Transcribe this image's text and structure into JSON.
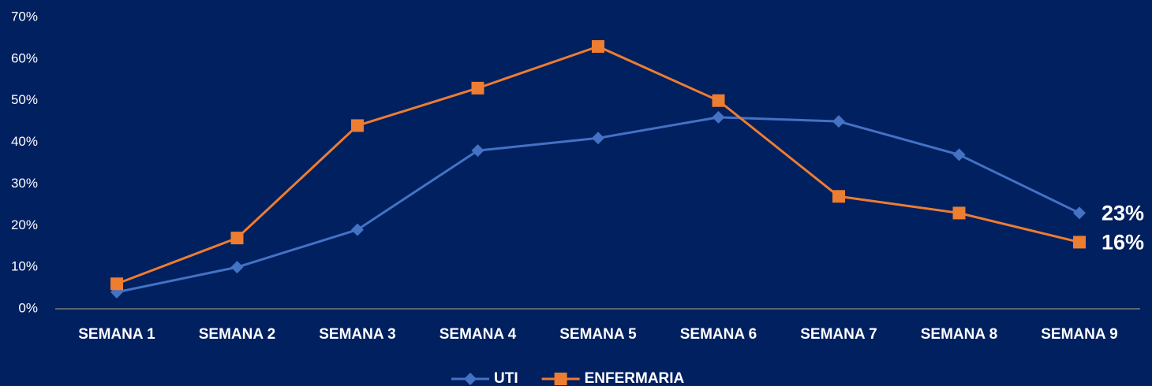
{
  "chart_data": {
    "type": "line",
    "categories": [
      "SEMANA 1",
      "SEMANA 2",
      "SEMANA 3",
      "SEMANA 4",
      "SEMANA 5",
      "SEMANA 6",
      "SEMANA 7",
      "SEMANA 8",
      "SEMANA 9"
    ],
    "series": [
      {
        "name": "UTI",
        "color": "#4472c4",
        "marker": "diamond",
        "values": [
          4,
          10,
          19,
          38,
          41,
          46,
          45,
          37,
          23
        ],
        "value_labels": [
          null,
          null,
          null,
          null,
          null,
          null,
          null,
          null,
          "23%"
        ]
      },
      {
        "name": "ENFERMARIA",
        "color": "#ed7d31",
        "marker": "square",
        "values": [
          6,
          17,
          44,
          53,
          63,
          50,
          27,
          23,
          16
        ],
        "value_labels": [
          null,
          null,
          null,
          null,
          null,
          null,
          null,
          null,
          "16%"
        ]
      }
    ],
    "ylim": [
      0,
      70
    ],
    "yticks": [
      {
        "value": 0,
        "label": "0%"
      },
      {
        "value": 10,
        "label": "10%"
      },
      {
        "value": 20,
        "label": "20%"
      },
      {
        "value": 30,
        "label": "30%"
      },
      {
        "value": 40,
        "label": "40%"
      },
      {
        "value": 50,
        "label": "50%"
      },
      {
        "value": 60,
        "label": "60%"
      },
      {
        "value": 70,
        "label": "70%"
      }
    ],
    "grid": false,
    "legend": "bottom"
  }
}
